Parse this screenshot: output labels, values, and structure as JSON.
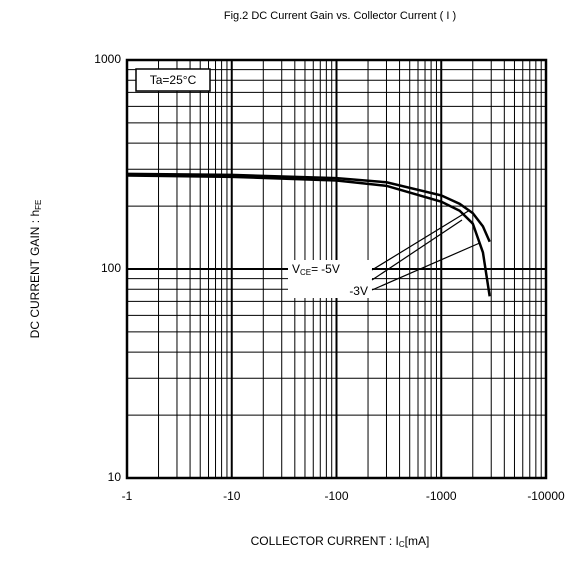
{
  "chart_data": {
    "type": "line",
    "title": "Fig.2 DC Current Gain vs. Collector Current ( I )",
    "xlabel": "COLLECTOR CURRENT : I",
    "xlabel_subscript": "C",
    "xlabel_suffix": "[mA]",
    "ylabel": "DC CURRENT GAIN : h",
    "ylabel_subscript": "FE",
    "annotation": "Ta=25°C",
    "legend_prefix": "V",
    "legend_subscript": "CE",
    "legend_equals": "=",
    "x_log": true,
    "y_log": true,
    "grid": true,
    "xlim": [
      -1,
      -10000
    ],
    "xticks": [
      -1,
      -10,
      -100,
      -1000,
      -10000
    ],
    "ylim": [
      10,
      1000
    ],
    "yticks": [
      10,
      100,
      1000
    ],
    "x": [
      -1,
      -10,
      -100,
      -300,
      -1000,
      -1500,
      -2000,
      -2500,
      -2900
    ],
    "series": [
      {
        "name": "-5V",
        "color": "#000000",
        "values": [
          285,
          282,
          272,
          260,
          225,
          205,
          185,
          160,
          135
        ]
      },
      {
        "name": "-3V",
        "color": "#000000",
        "values": [
          280,
          276,
          265,
          250,
          210,
          190,
          165,
          120,
          74
        ]
      }
    ]
  }
}
